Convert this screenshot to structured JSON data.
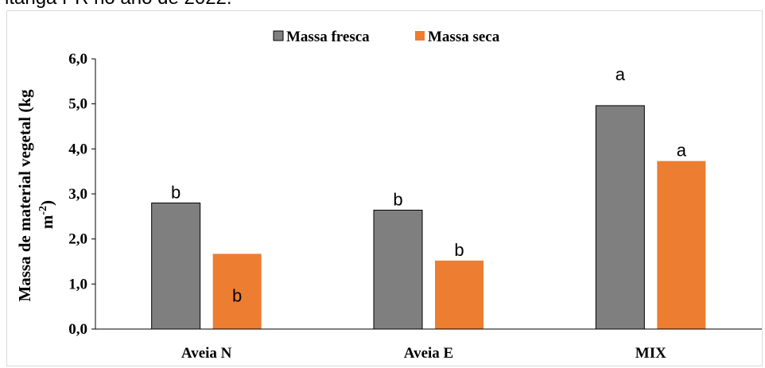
{
  "caption": "itanga PR no ano de 2022.",
  "colors": {
    "massa_fresca": "#7f7f7f",
    "massa_seca": "#ed7d31",
    "axis": "#000000",
    "frame": "#d9d9d9"
  },
  "chart_data": {
    "type": "bar",
    "categories": [
      "Aveia N",
      "Aveia E",
      "MIX"
    ],
    "series": [
      {
        "name": "Massa fresca",
        "values": [
          2.8,
          2.64,
          4.96
        ],
        "labels": [
          "b",
          "b",
          "a"
        ]
      },
      {
        "name": "Massa seca",
        "values": [
          1.67,
          1.52,
          3.73
        ],
        "labels": [
          "b",
          "b",
          "a"
        ]
      }
    ],
    "ylabel_line1": "Massa de material vegetal (kg",
    "ylabel_line2": "m-2)",
    "ylim": [
      0,
      6
    ],
    "yticks": [
      "0,0",
      "1,0",
      "2,0",
      "3,0",
      "4,0",
      "5,0",
      "6,0"
    ],
    "legend_position": "top-center",
    "grid": false
  }
}
